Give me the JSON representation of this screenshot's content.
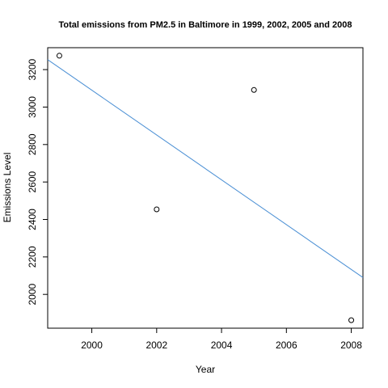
{
  "chart_data": {
    "type": "scatter",
    "title": "Total emissions from PM2.5 in Baltimore in 1999, 2002, 2005 and 2008",
    "xlabel": "Year",
    "ylabel": "Emissions Level",
    "xlim": [
      1998.64,
      2008.36
    ],
    "ylim": [
      1819.6,
      3317.0
    ],
    "x_ticks": [
      2000,
      2002,
      2004,
      2006,
      2008
    ],
    "y_ticks": [
      2000,
      2200,
      2400,
      2600,
      2800,
      3000,
      3200
    ],
    "grid": false,
    "points": [
      {
        "x": 1999,
        "y": 3274.18
      },
      {
        "x": 2002,
        "y": 2453.92
      },
      {
        "x": 2005,
        "y": 3091.35
      },
      {
        "x": 2008,
        "y": 1862.28
      }
    ],
    "trend_line": {
      "x": [
        1998.64,
        2008.36
      ],
      "y": [
        3253,
        2090
      ]
    },
    "colors": {
      "points": "#000000",
      "trend_line": "#4a8fd4",
      "axes": "#000000"
    }
  }
}
